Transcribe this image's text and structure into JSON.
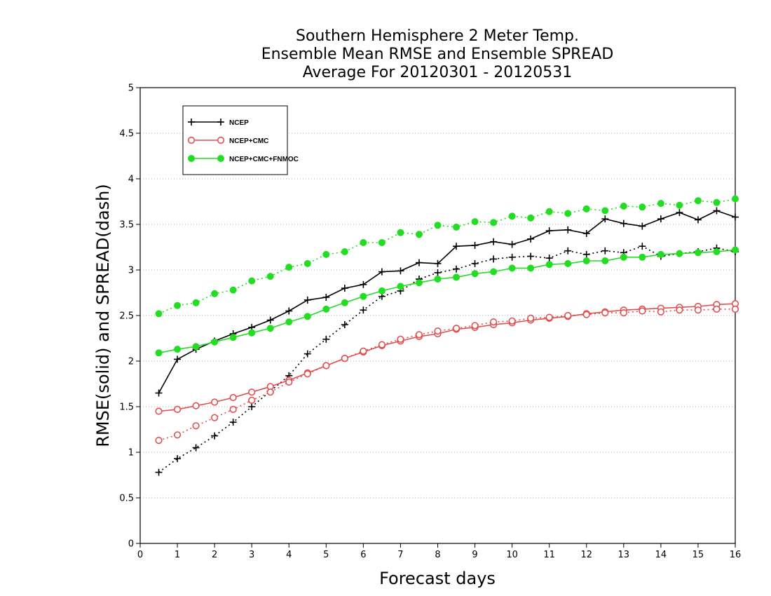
{
  "chart_data": {
    "type": "line",
    "title": [
      "Southern Hemisphere 2 Meter Temp.",
      "Ensemble Mean RMSE and Ensemble SPREAD",
      "Average For 20120301 - 20120531"
    ],
    "xlabel": "Forecast days",
    "ylabel": "RMSE(solid) and SPREAD(dash)",
    "xlim": [
      0,
      16
    ],
    "ylim": [
      0,
      5
    ],
    "xticks": [
      "0",
      "1",
      "2",
      "3",
      "4",
      "5",
      "6",
      "7",
      "8",
      "9",
      "10",
      "11",
      "12",
      "13",
      "14",
      "15",
      "16"
    ],
    "yticks": [
      "0",
      "0.5",
      "1",
      "1.5",
      "2",
      "2.5",
      "3",
      "3.5",
      "4",
      "4.5",
      "5"
    ],
    "grid": "horizontal dotted",
    "legend_position": "top-left",
    "x": [
      0.5,
      1,
      1.5,
      2,
      2.5,
      3,
      3.5,
      4,
      4.5,
      5,
      5.5,
      6,
      6.5,
      7,
      7.5,
      8,
      8.5,
      9,
      9.5,
      10,
      10.5,
      11,
      11.5,
      12,
      12.5,
      13,
      13.5,
      14,
      14.5,
      15,
      15.5,
      16
    ],
    "series": [
      {
        "name": "NCEP",
        "color": "#000000",
        "marker": "plus",
        "rmse": [
          1.65,
          2.02,
          2.13,
          2.22,
          2.3,
          2.37,
          2.45,
          2.55,
          2.67,
          2.7,
          2.8,
          2.84,
          2.98,
          2.99,
          3.08,
          3.07,
          3.26,
          3.27,
          3.31,
          3.28,
          3.34,
          3.43,
          3.44,
          3.4,
          3.56,
          3.51,
          3.48,
          3.56,
          3.63,
          3.55,
          3.65,
          3.58
        ],
        "spread": [
          0.78,
          0.93,
          1.05,
          1.18,
          1.33,
          1.5,
          1.67,
          1.84,
          2.08,
          2.24,
          2.4,
          2.56,
          2.71,
          2.77,
          2.9,
          2.97,
          3.01,
          3.07,
          3.12,
          3.14,
          3.15,
          3.13,
          3.21,
          3.17,
          3.21,
          3.19,
          3.26,
          3.15,
          3.18,
          3.2,
          3.24,
          3.2
        ]
      },
      {
        "name": "NCEP+CMC",
        "color": "#e05050",
        "marker": "open-circle",
        "rmse": [
          1.45,
          1.47,
          1.51,
          1.55,
          1.6,
          1.66,
          1.72,
          1.79,
          1.87,
          1.95,
          2.03,
          2.1,
          2.17,
          2.22,
          2.27,
          2.3,
          2.35,
          2.37,
          2.4,
          2.42,
          2.45,
          2.47,
          2.49,
          2.52,
          2.54,
          2.56,
          2.57,
          2.58,
          2.59,
          2.6,
          2.62,
          2.63
        ],
        "spread": [
          1.13,
          1.19,
          1.29,
          1.38,
          1.47,
          1.57,
          1.66,
          1.77,
          1.86,
          1.95,
          2.03,
          2.11,
          2.18,
          2.24,
          2.29,
          2.33,
          2.36,
          2.39,
          2.43,
          2.44,
          2.47,
          2.48,
          2.5,
          2.51,
          2.53,
          2.53,
          2.55,
          2.54,
          2.56,
          2.56,
          2.57,
          2.57
        ]
      },
      {
        "name": "NCEP+CMC+FNMOC",
        "color": "#22dd22",
        "marker": "filled-circle",
        "rmse": [
          2.09,
          2.13,
          2.16,
          2.21,
          2.26,
          2.31,
          2.36,
          2.43,
          2.49,
          2.57,
          2.64,
          2.71,
          2.77,
          2.82,
          2.86,
          2.9,
          2.92,
          2.96,
          2.98,
          3.02,
          3.02,
          3.06,
          3.07,
          3.1,
          3.1,
          3.14,
          3.14,
          3.17,
          3.18,
          3.19,
          3.2,
          3.22
        ],
        "spread": [
          2.52,
          2.61,
          2.64,
          2.74,
          2.78,
          2.88,
          2.93,
          3.03,
          3.07,
          3.17,
          3.2,
          3.3,
          3.3,
          3.41,
          3.39,
          3.49,
          3.47,
          3.53,
          3.52,
          3.59,
          3.57,
          3.64,
          3.62,
          3.67,
          3.65,
          3.7,
          3.69,
          3.73,
          3.71,
          3.76,
          3.74,
          3.78
        ]
      }
    ]
  }
}
